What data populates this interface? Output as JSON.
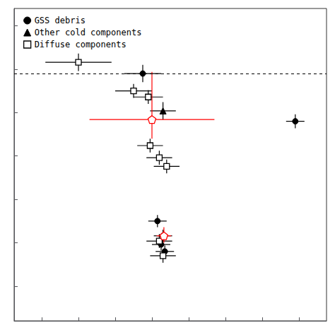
{
  "chart_data": {
    "type": "scatter",
    "xlim": [
      -1.75,
      -0.05
    ],
    "ylim": [
      25.4,
      21.8
    ],
    "xticks": [
      -1.6,
      -1.4,
      -1.2,
      -1.0,
      -0.8,
      -0.6,
      -0.4,
      -0.2
    ],
    "yticks": [
      22.0,
      22.5,
      23.0,
      23.5,
      24.0,
      24.5,
      25.0
    ],
    "tick_labels": false,
    "grid": false,
    "legend": "upper left",
    "hlines": [
      {
        "y": 22.55,
        "color": "#000000",
        "line_style": "dashed"
      }
    ],
    "series": [
      {
        "name": "GSS debris",
        "color": "#000000",
        "marker": "circle",
        "x": [
          -1.05,
          -0.22,
          -0.97,
          -0.94,
          -0.95,
          -0.93
        ],
        "y": [
          22.55,
          23.1,
          24.25,
          24.42,
          24.52,
          24.6
        ],
        "xerr": [
          0.1,
          0.05,
          0.05,
          0.05,
          0.05,
          0.05
        ],
        "yerr": [
          0.1,
          0.08,
          0.07,
          0.07,
          0.07,
          0.07
        ]
      },
      {
        "name": "Other cold components",
        "color": "#000000",
        "marker": "triangle",
        "x": [
          -0.94
        ],
        "y": [
          22.98
        ],
        "xerr": [
          0.07
        ],
        "yerr": [
          0.1
        ]
      },
      {
        "name": "Diffuse components",
        "color": "#000000",
        "marker": "open_square",
        "x": [
          -1.4,
          -1.1,
          -1.02,
          -1.01,
          -0.96,
          -0.92,
          -0.96,
          -0.94
        ],
        "y": [
          22.42,
          22.75,
          22.82,
          23.38,
          23.52,
          23.62,
          24.48,
          24.65
        ],
        "xerr": [
          0.18,
          0.1,
          0.08,
          0.07,
          0.07,
          0.07,
          0.07,
          0.07
        ],
        "yerr": [
          0.1,
          0.08,
          0.08,
          0.08,
          0.08,
          0.08,
          0.08,
          0.08
        ]
      },
      {
        "color": "#ff0000",
        "marker": "open_pentagon",
        "x": [
          -1.0,
          -0.935
        ],
        "y": [
          23.08,
          24.42
        ],
        "xerr": [
          0.34,
          0.04
        ],
        "yerr_lo": [
          0.55,
          0.1
        ],
        "yerr_hi": [
          0.22,
          0.08
        ]
      }
    ]
  }
}
